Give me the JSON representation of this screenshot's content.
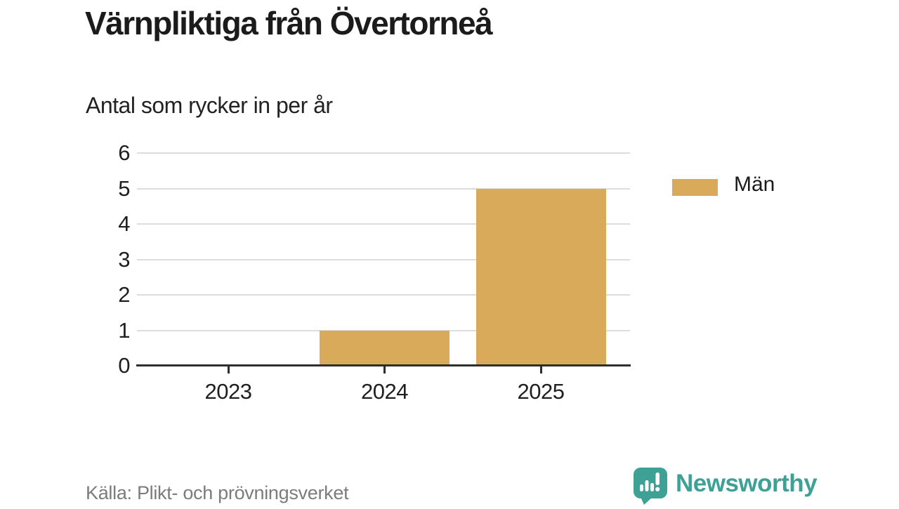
{
  "header": {
    "title": "Värnpliktiga från Övertorneå",
    "subtitle": "Antal som rycker in per år"
  },
  "chart_data": {
    "type": "bar",
    "categories": [
      "2023",
      "2024",
      "2025"
    ],
    "series": [
      {
        "name": "Män",
        "values": [
          0,
          1,
          5
        ],
        "color": "#d9aa5a"
      }
    ],
    "title": "Värnpliktiga från Övertorneå",
    "subtitle": "Antal som rycker in per år",
    "xlabel": "",
    "ylabel": "",
    "ylim": [
      0,
      6
    ],
    "yticks": [
      0,
      1,
      2,
      3,
      4,
      5,
      6
    ],
    "grid": true,
    "legend_position": "right"
  },
  "legend": {
    "items": [
      {
        "label": "Män",
        "color": "#d9aa5a"
      }
    ]
  },
  "footer": {
    "source": "Källa: Plikt- och prövningsverket",
    "brand": "Newsworthy"
  },
  "colors": {
    "bar": "#d9aa5a",
    "brand_teal": "#3fa096",
    "grid": "#dcdcdc",
    "axis": "#2e2e2e",
    "text_dark": "#1b1b1b",
    "text_gray": "#7c7c7c"
  }
}
